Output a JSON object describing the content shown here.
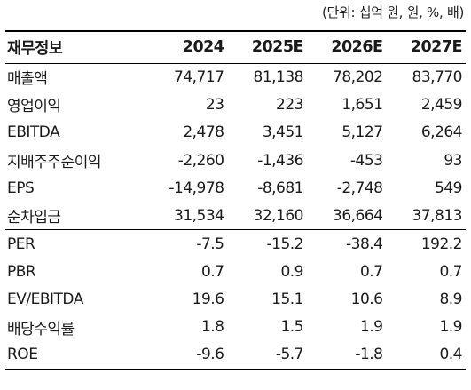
{
  "unit_note": "(단위: 십억 원, 원, %, 배)",
  "table": {
    "header": {
      "label": "재무정보",
      "years": [
        "2024",
        "2025E",
        "2026E",
        "2027E"
      ]
    },
    "group_a": [
      {
        "label": "매출액",
        "values": [
          "74,717",
          "81,138",
          "78,202",
          "83,770"
        ]
      },
      {
        "label": "영업이익",
        "values": [
          "23",
          "223",
          "1,651",
          "2,459"
        ]
      },
      {
        "label": "EBITDA",
        "values": [
          "2,478",
          "3,451",
          "5,127",
          "6,264"
        ]
      },
      {
        "label": "지배주주순이익",
        "values": [
          "-2,260",
          "-1,436",
          "-453",
          "93"
        ]
      },
      {
        "label": "EPS",
        "values": [
          "-14,978",
          "-8,681",
          "-2,748",
          "549"
        ]
      },
      {
        "label": "순차입금",
        "values": [
          "31,534",
          "32,160",
          "36,664",
          "37,813"
        ]
      }
    ],
    "group_b": [
      {
        "label": "PER",
        "values": [
          "-7.5",
          "-15.2",
          "-38.4",
          "192.2"
        ]
      },
      {
        "label": "PBR",
        "values": [
          "0.7",
          "0.9",
          "0.7",
          "0.7"
        ]
      },
      {
        "label": "EV/EBITDA",
        "values": [
          "19.6",
          "15.1",
          "10.6",
          "8.9"
        ]
      },
      {
        "label": "배당수익률",
        "values": [
          "1.8",
          "1.5",
          "1.9",
          "1.9"
        ]
      },
      {
        "label": "ROE",
        "values": [
          "-9.6",
          "-5.7",
          "-1.8",
          "0.4"
        ]
      }
    ]
  }
}
